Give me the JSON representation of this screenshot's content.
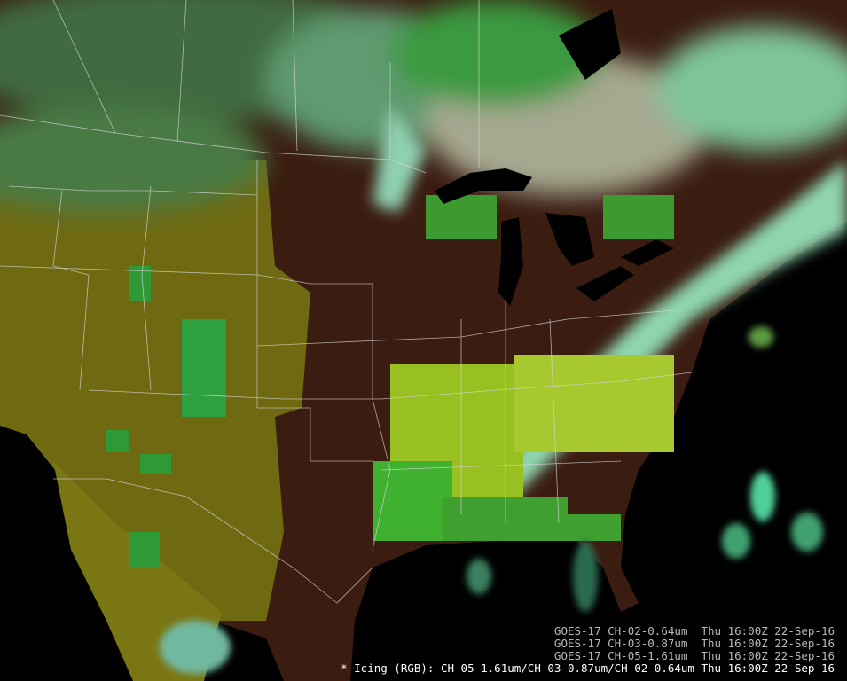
{
  "product": "Icing (RGB)",
  "colors": {
    "ocean": "#000000",
    "land_clear": "#3a1a10",
    "snow_ice": "#7a7a10",
    "ice_cloud": "#2fae3a",
    "water_cloud": "#9fdcc0"
  },
  "legend": [
    {
      "satellite": "GOES-17",
      "channel": "CH-02-0.64um",
      "time": "Thu 16:00Z 22-Sep-16",
      "text": "GOES-17 CH-02-0.64um  Thu 16:00Z 22-Sep-16"
    },
    {
      "satellite": "GOES-17",
      "channel": "CH-03-0.87um",
      "time": "Thu 16:00Z 22-Sep-16",
      "text": "GOES-17 CH-03-0.87um  Thu 16:00Z 22-Sep-16"
    },
    {
      "satellite": "GOES-17",
      "channel": "CH-05-1.61um",
      "time": "Thu 16:00Z 22-Sep-16",
      "text": "GOES-17 CH-05-1.61um  Thu 16:00Z 22-Sep-16"
    }
  ],
  "main_label": "* Icing (RGB): CH-05-1.61um/CH-03-0.87um/CH-02-0.64um Thu 16:00Z 22-Sep-16"
}
